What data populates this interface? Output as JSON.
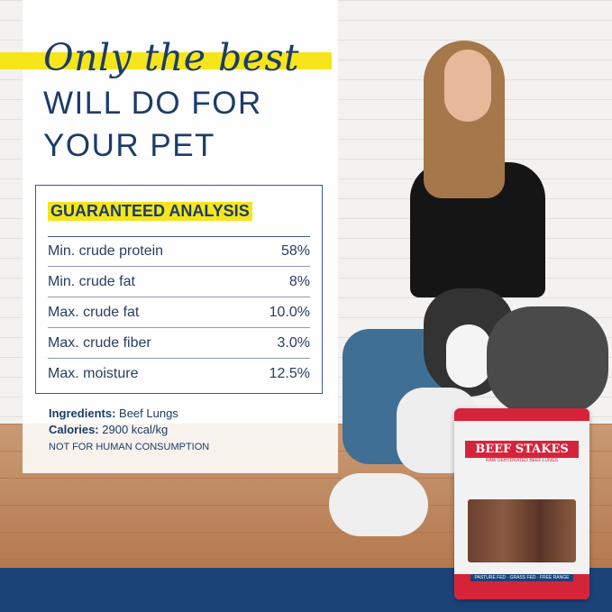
{
  "headline": {
    "script": "Only the best",
    "line2": "WILL DO FOR",
    "line3": "YOUR PET"
  },
  "analysis": {
    "title": "GUARANTEED ANALYSIS",
    "rows": [
      {
        "label": "Min. crude protein",
        "value": "58%"
      },
      {
        "label": "Min. crude fat",
        "value": "8%"
      },
      {
        "label": "Max. crude fat",
        "value": "10.0%"
      },
      {
        "label": "Max. crude fiber",
        "value": "3.0%"
      },
      {
        "label": "Max. moisture",
        "value": "12.5%"
      }
    ]
  },
  "ingredients": {
    "label": "Ingredients:",
    "value": "Beef Lungs"
  },
  "calories": {
    "label": "Calories:",
    "value": "2900 kcal/kg"
  },
  "warning": "NOT FOR HUMAN CONSUMPTION",
  "product": {
    "brand": "BEEF STAKES",
    "subtitle": "RAW DEHYDRATED BEEF LUNGS",
    "badges": "PASTURE FED · GRASS FED · FREE RANGE"
  },
  "colors": {
    "navy": "#1c3c6a",
    "yellow": "#f6e51b",
    "band": "#1c4378",
    "bag_red": "#d5243a"
  }
}
